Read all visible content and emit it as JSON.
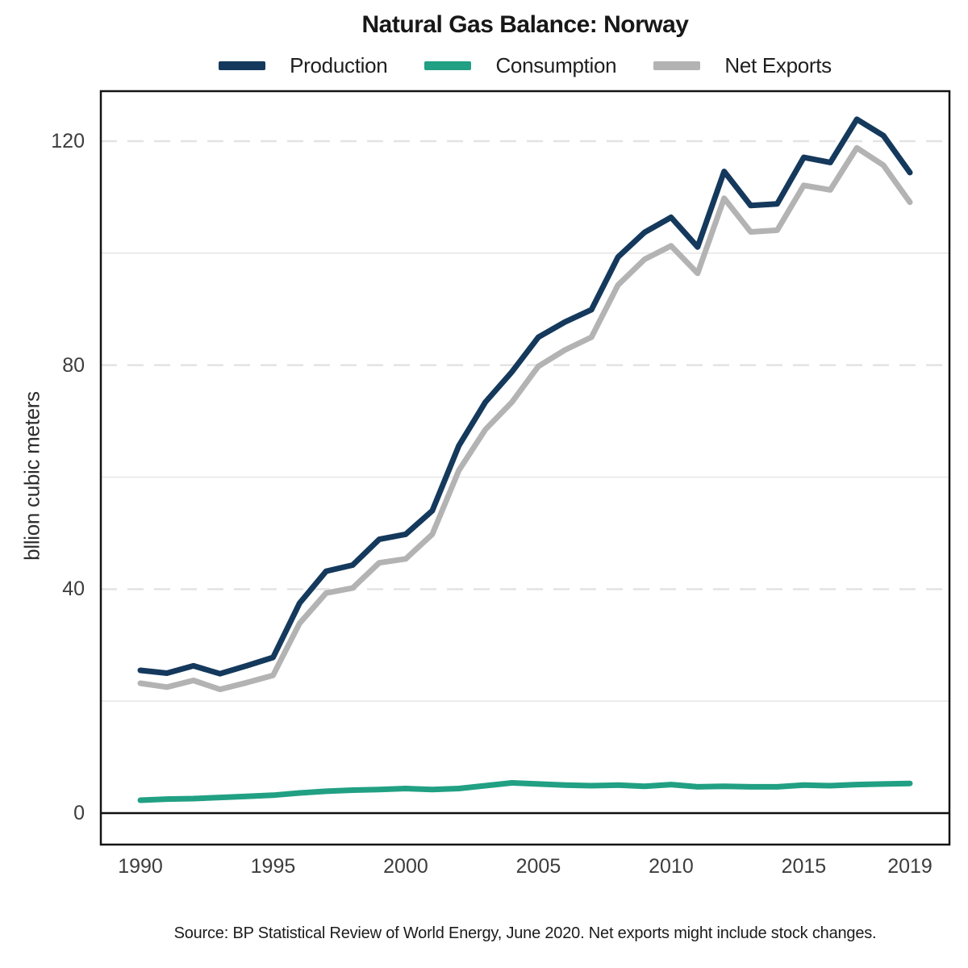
{
  "title": "Natural Gas Balance: Norway",
  "source_note": "Source: BP Statistical Review of World Energy, June 2020. Net exports might include stock changes.",
  "colors": {
    "production": "#14395c",
    "consumption": "#21a083",
    "net_exports": "#b3b3b3",
    "grid_dashed": "#e3e3e3",
    "grid_solid": "#eaeaea",
    "axis_frame": "#141414",
    "zero_line": "#0f0f0f",
    "tick_text": "#3d3d3d"
  },
  "chart_data": {
    "type": "line",
    "title": "Natural Gas Balance: Norway",
    "xlabel": "",
    "ylabel": "bllion cubic meters",
    "x": [
      1990,
      1991,
      1992,
      1993,
      1994,
      1995,
      1996,
      1997,
      1998,
      1999,
      2000,
      2001,
      2002,
      2003,
      2004,
      2005,
      2006,
      2007,
      2008,
      2009,
      2010,
      2011,
      2012,
      2013,
      2014,
      2015,
      2016,
      2017,
      2018,
      2019
    ],
    "x_tick_labels": [
      1990,
      1995,
      2000,
      2005,
      2010,
      2015,
      2019
    ],
    "y_tick_labels": [
      0,
      40,
      80,
      120
    ],
    "ylim": [
      -5.6,
      129
    ],
    "xlim": [
      1988.5,
      2020.5
    ],
    "grid": {
      "dashed_lines_at": [
        40,
        80,
        120
      ],
      "solid_lines_at": [
        20,
        60,
        100
      ]
    },
    "legend_position": "top",
    "series": [
      {
        "name": "Production",
        "color": "#14395c",
        "values": [
          25.5,
          25.0,
          26.3,
          24.9,
          26.3,
          27.8,
          37.5,
          43.2,
          44.3,
          48.9,
          49.8,
          54.0,
          65.6,
          73.4,
          78.8,
          85.0,
          87.7,
          89.9,
          99.3,
          103.7,
          106.4,
          101.1,
          114.6,
          108.5,
          108.8,
          117.1,
          116.2,
          123.9,
          121.0,
          114.4
        ]
      },
      {
        "name": "Consumption",
        "color": "#21a083",
        "values": [
          2.3,
          2.5,
          2.6,
          2.8,
          3.0,
          3.2,
          3.6,
          3.9,
          4.1,
          4.2,
          4.4,
          4.2,
          4.4,
          4.9,
          5.4,
          5.2,
          5.0,
          4.9,
          5.0,
          4.8,
          5.1,
          4.7,
          4.8,
          4.7,
          4.7,
          5.0,
          4.9,
          5.1,
          5.2,
          5.3
        ]
      },
      {
        "name": "Net Exports",
        "color": "#b3b3b3",
        "values": [
          23.2,
          22.5,
          23.7,
          22.1,
          23.3,
          24.6,
          33.9,
          39.3,
          40.2,
          44.7,
          45.4,
          49.8,
          61.2,
          68.5,
          73.4,
          79.8,
          82.7,
          85.0,
          94.3,
          98.9,
          101.3,
          96.4,
          109.8,
          103.8,
          104.1,
          112.1,
          111.3,
          118.8,
          115.7,
          109.1
        ]
      }
    ]
  }
}
